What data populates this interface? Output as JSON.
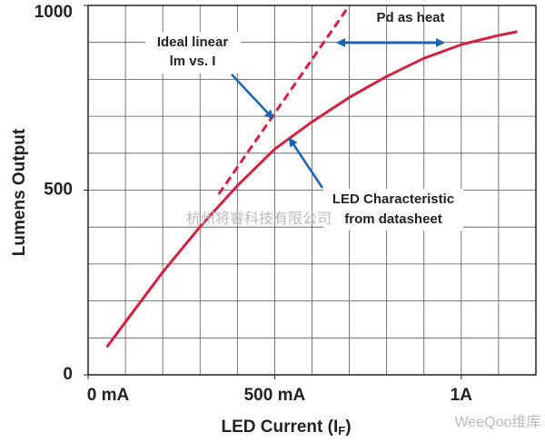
{
  "chart_data": {
    "type": "line",
    "y_label": "Lumens Output",
    "x_label": {
      "text": "LED Current (I",
      "subscript": "F",
      "suffix": ")"
    },
    "annotations": [
      [
        "Ideal linear",
        "lm vs. I"
      ],
      [
        "Pd as heat"
      ],
      [
        "LED Characteristic",
        "from datasheet"
      ]
    ],
    "watermarks": [
      "杭州将睿科技有限公司",
      "WeeQoo维库"
    ],
    "xlim": [
      0,
      1200
    ],
    "ylim": [
      0,
      1000
    ],
    "xticks": [
      {
        "value": 0,
        "label": "0 mA"
      },
      {
        "value": 500,
        "label": "500 mA"
      },
      {
        "value": 1000,
        "label": "1A"
      }
    ],
    "yticks": [
      0,
      500,
      1000
    ],
    "grid": true,
    "grid_interval": 100,
    "series": [
      {
        "name": "LED Characteristic",
        "color": "#d4213d",
        "dashed": false,
        "x": [
          50,
          100,
          200,
          300,
          400,
          500,
          600,
          700,
          800,
          900,
          1000,
          1100,
          1150
        ],
        "values": [
          75,
          143,
          278,
          401,
          512,
          611,
          685,
          751,
          808,
          857,
          894,
          919,
          929
        ]
      },
      {
        "name": "Ideal linear",
        "color": "#d4213d",
        "dashed": true,
        "x": [
          350,
          700
        ],
        "values": [
          489,
          1000
        ]
      }
    ]
  }
}
